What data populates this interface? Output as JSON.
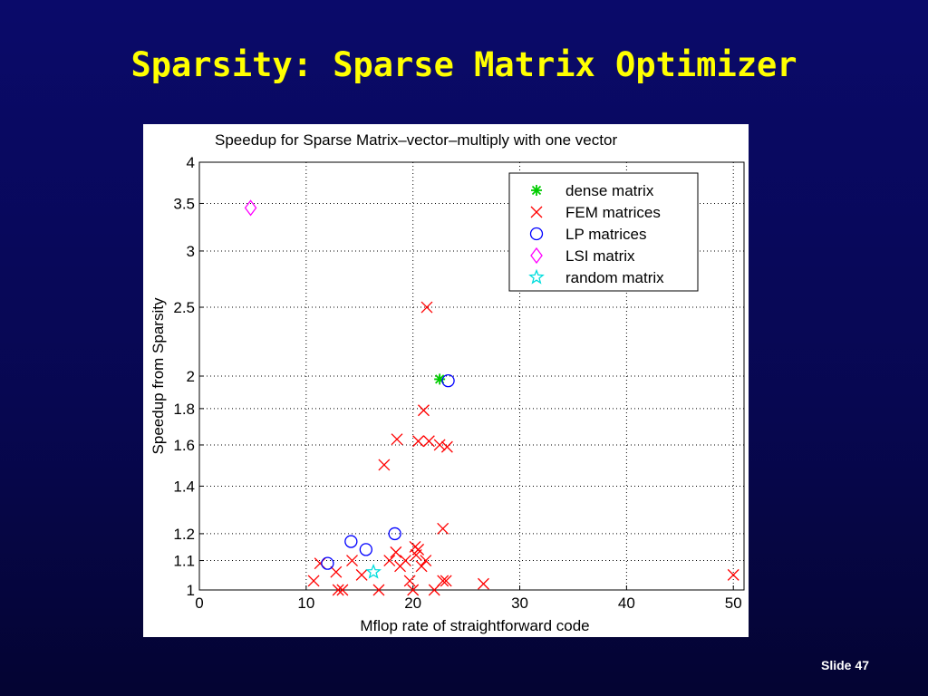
{
  "slide": {
    "title": "Sparsity: Sparse Matrix Optimizer",
    "number_label": "Slide",
    "number": "47"
  },
  "chart_data": {
    "type": "scatter",
    "title": "Speedup for Sparse Matrix–vector–multiply with one vector",
    "xlabel": "Mflop rate of straightforward code",
    "ylabel": "Speedup from Sparsity",
    "xlim": [
      0,
      51
    ],
    "ylim": [
      1,
      4
    ],
    "y_scale": "log",
    "x_ticks": [
      0,
      10,
      20,
      30,
      40,
      50
    ],
    "y_ticks": [
      1,
      1.1,
      1.2,
      1.4,
      1.6,
      1.8,
      2,
      2.5,
      3,
      3.5,
      4
    ],
    "grid": true,
    "legend_position": "top-right",
    "series": [
      {
        "name": "dense matrix",
        "marker": "asterisk",
        "color": "#00cc00",
        "points": [
          [
            22.5,
            1.98
          ]
        ]
      },
      {
        "name": "FEM matrices",
        "marker": "x",
        "color": "#ff0000",
        "points": [
          [
            21.3,
            2.5
          ],
          [
            17.3,
            1.5
          ],
          [
            18.5,
            1.63
          ],
          [
            21.0,
            1.79
          ],
          [
            20.5,
            1.62
          ],
          [
            21.5,
            1.62
          ],
          [
            22.5,
            1.6
          ],
          [
            23.2,
            1.59
          ],
          [
            22.8,
            1.22
          ],
          [
            20.2,
            1.15
          ],
          [
            20.5,
            1.14
          ],
          [
            10.7,
            1.03
          ],
          [
            11.3,
            1.09
          ],
          [
            12.8,
            1.06
          ],
          [
            13.0,
            1.0
          ],
          [
            13.4,
            1.0
          ],
          [
            14.3,
            1.1
          ],
          [
            15.2,
            1.05
          ],
          [
            16.8,
            1.0
          ],
          [
            17.8,
            1.1
          ],
          [
            18.4,
            1.13
          ],
          [
            18.8,
            1.08
          ],
          [
            19.3,
            1.1
          ],
          [
            19.7,
            1.03
          ],
          [
            20.0,
            1.0
          ],
          [
            20.3,
            1.12
          ],
          [
            20.8,
            1.08
          ],
          [
            21.2,
            1.1
          ],
          [
            22.0,
            1.0
          ],
          [
            22.8,
            1.03
          ],
          [
            23.1,
            1.03
          ],
          [
            26.6,
            1.02
          ],
          [
            50.0,
            1.05
          ]
        ]
      },
      {
        "name": "LP matrices",
        "marker": "circle",
        "color": "#0000ff",
        "points": [
          [
            12.0,
            1.09
          ],
          [
            14.2,
            1.17
          ],
          [
            15.6,
            1.14
          ],
          [
            18.3,
            1.2
          ],
          [
            23.3,
            1.97
          ]
        ]
      },
      {
        "name": "LSI matrix",
        "marker": "diamond",
        "color": "#ff00ff",
        "points": [
          [
            4.8,
            3.45
          ]
        ]
      },
      {
        "name": "random matrix",
        "marker": "star",
        "color": "#00dddd",
        "points": [
          [
            16.3,
            1.06
          ]
        ]
      }
    ]
  }
}
